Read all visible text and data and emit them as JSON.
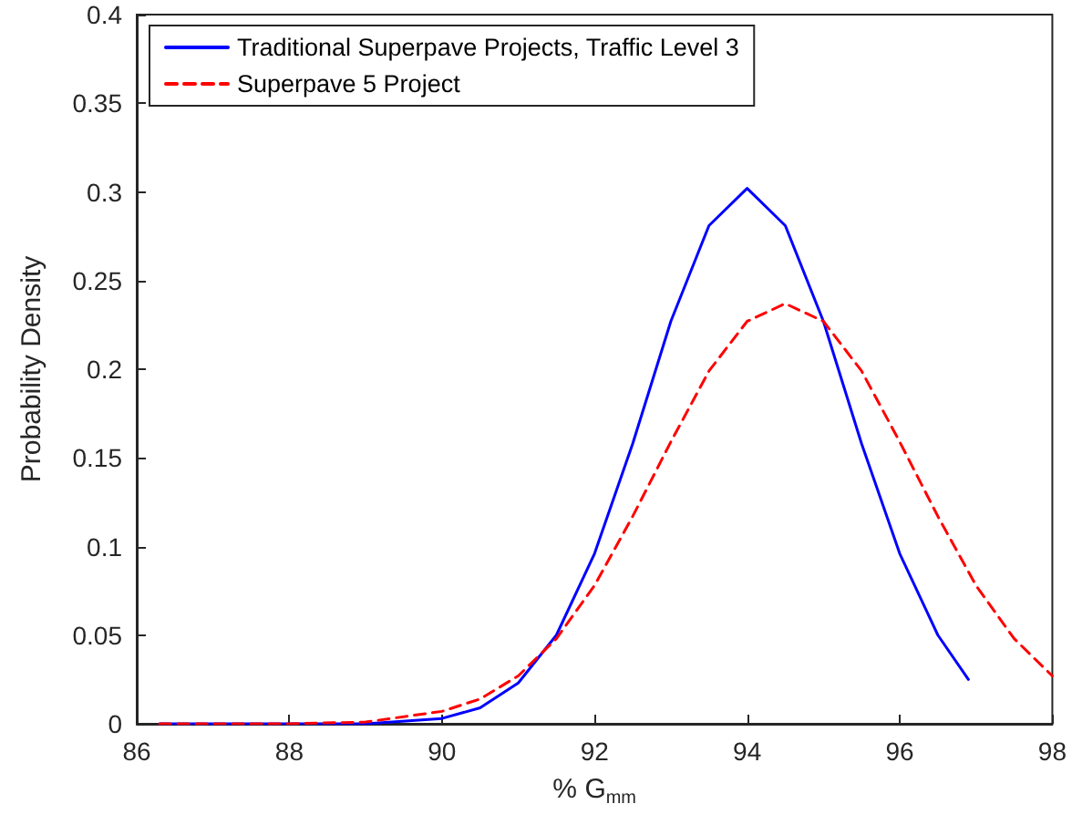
{
  "chart_data": {
    "type": "line",
    "xlabel": "% G$_{mm}$",
    "ylabel": "Probability Density",
    "xlim": [
      86,
      98
    ],
    "xticks": [
      86,
      88,
      90,
      92,
      94,
      96,
      98
    ],
    "ylim": [
      0,
      0.4
    ],
    "yticks": [
      0,
      0.05,
      0.1,
      0.15,
      0.2,
      0.25,
      0.3,
      0.35,
      0.4
    ],
    "grid": false,
    "legend": "top left",
    "marker": "none",
    "series": [
      {
        "name": "Traditional Superpave Projects, Traffic Level 3",
        "color": "#0000ff",
        "line_style": "solid",
        "x": [
          86.3,
          88,
          89,
          90,
          90.5,
          91,
          91.5,
          92,
          92.5,
          93,
          93.5,
          94,
          94.5,
          95,
          95.5,
          96,
          96.5,
          96.9
        ],
        "values": [
          0,
          0,
          0,
          0.003,
          0.009,
          0.023,
          0.05,
          0.096,
          0.158,
          0.227,
          0.281,
          0.302,
          0.281,
          0.227,
          0.158,
          0.096,
          0.05,
          0.025
        ]
      },
      {
        "name": "Superpave 5 Project",
        "color": "#ff0000",
        "line_style": "dashed",
        "x": [
          86.3,
          88,
          89,
          90,
          90.5,
          91,
          91.5,
          92,
          92.5,
          93,
          93.5,
          94,
          94.5,
          95,
          95.5,
          96,
          96.5,
          97,
          97.5,
          98
        ],
        "values": [
          0,
          0,
          0.001,
          0.007,
          0.014,
          0.027,
          0.048,
          0.078,
          0.117,
          0.159,
          0.199,
          0.227,
          0.237,
          0.227,
          0.199,
          0.159,
          0.117,
          0.078,
          0.048,
          0.027
        ]
      }
    ]
  }
}
